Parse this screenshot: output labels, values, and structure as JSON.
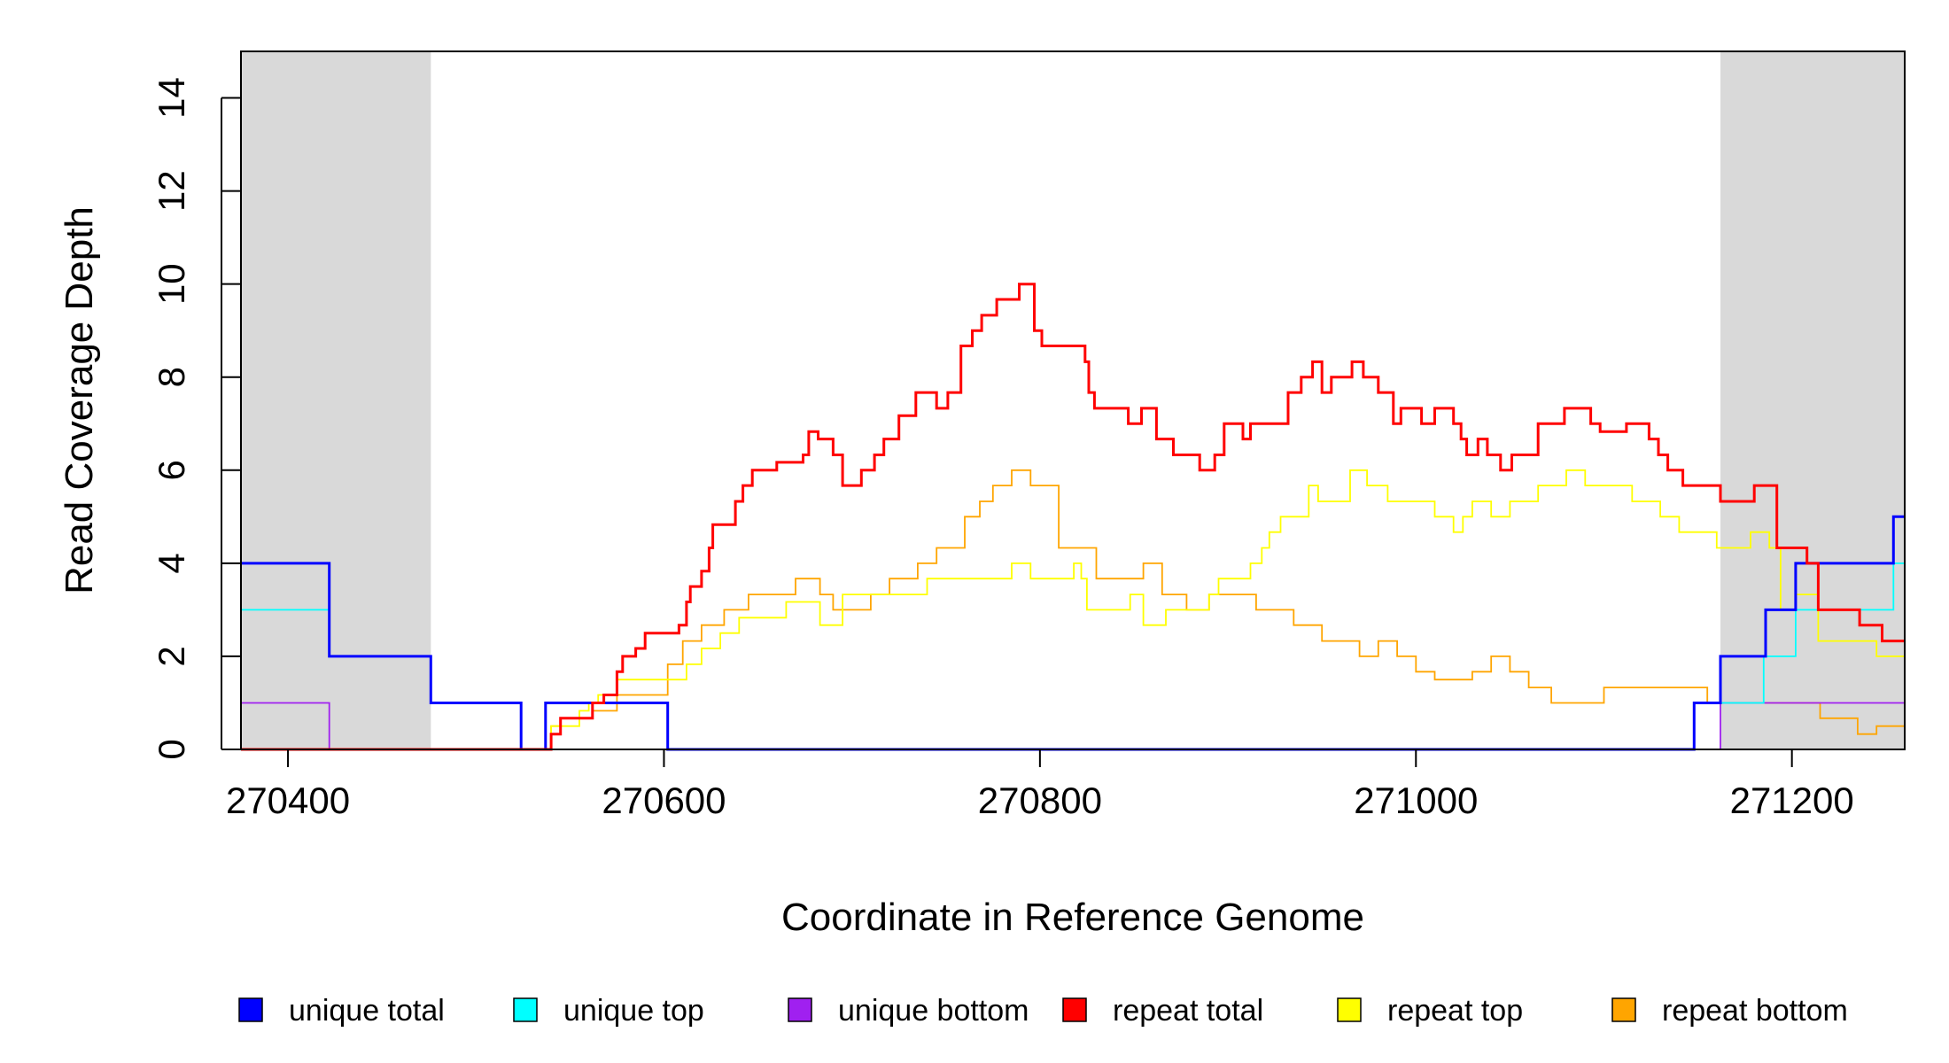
{
  "chart_data": {
    "type": "line",
    "xlabel": "Coordinate in Reference Genome",
    "ylabel": "Read Coverage Depth",
    "xlim": [
      270375,
      271260
    ],
    "ylim": [
      0,
      15
    ],
    "x_ticks": [
      270400,
      270600,
      270800,
      271000,
      271200
    ],
    "x_tick_labels": [
      "270400",
      "270600",
      "270800",
      "271000",
      "271200"
    ],
    "y_ticks": [
      0,
      2,
      4,
      6,
      8,
      10,
      12,
      14
    ],
    "y_tick_labels": [
      "0",
      "2",
      "4",
      "6",
      "8",
      "10",
      "12",
      "14"
    ],
    "shaded_regions": [
      {
        "from": 270375,
        "to": 270476,
        "color": "#d9d9d9"
      },
      {
        "from": 271162,
        "to": 271260,
        "color": "#d9d9d9"
      }
    ],
    "series": [
      {
        "name": "unique total",
        "color": "#0000ff",
        "step": [
          [
            270375,
            4
          ],
          [
            270422,
            2
          ],
          [
            270476,
            1
          ],
          [
            270524,
            0
          ],
          [
            270537,
            1
          ],
          [
            270602,
            0
          ],
          [
            271148,
            1
          ],
          [
            271162,
            2
          ],
          [
            271186,
            3
          ],
          [
            271202,
            4
          ],
          [
            271254,
            5
          ],
          [
            271260,
            5
          ]
        ]
      },
      {
        "name": "unique top",
        "color": "#00ffff",
        "step": [
          [
            270375,
            3
          ],
          [
            270422,
            2
          ],
          [
            270476,
            1
          ],
          [
            270524,
            0
          ],
          [
            270537,
            1
          ],
          [
            270602,
            0
          ],
          [
            271148,
            1
          ],
          [
            271185,
            2
          ],
          [
            271202,
            3
          ],
          [
            271254,
            4
          ],
          [
            271260,
            4
          ]
        ]
      },
      {
        "name": "unique bottom",
        "color": "#a020f0",
        "step": [
          [
            270375,
            1
          ],
          [
            270422,
            0
          ],
          [
            271162,
            1
          ],
          [
            271260,
            1
          ]
        ]
      },
      {
        "name": "repeat total",
        "color": "#ff0000",
        "step": [
          [
            270375,
            0
          ],
          [
            270537,
            0
          ],
          [
            270540,
            0.33
          ],
          [
            270545,
            0.67
          ],
          [
            270547,
            0.67
          ],
          [
            270562,
            1
          ],
          [
            270568,
            1.17
          ],
          [
            270575,
            1.67
          ],
          [
            270578,
            2
          ],
          [
            270585,
            2.17
          ],
          [
            270590,
            2.5
          ],
          [
            270608,
            2.67
          ],
          [
            270612,
            3.17
          ],
          [
            270614,
            3.5
          ],
          [
            270620,
            3.83
          ],
          [
            270624,
            4.33
          ],
          [
            270626,
            4.83
          ],
          [
            270638,
            5.33
          ],
          [
            270642,
            5.67
          ],
          [
            270647,
            6
          ],
          [
            270660,
            6.17
          ],
          [
            270674,
            6.33
          ],
          [
            270677,
            6.83
          ],
          [
            270682,
            6.67
          ],
          [
            270690,
            6.33
          ],
          [
            270695,
            5.67
          ],
          [
            270705,
            6
          ],
          [
            270712,
            6.33
          ],
          [
            270717,
            6.67
          ],
          [
            270725,
            7.17
          ],
          [
            270734,
            7.67
          ],
          [
            270745,
            7.33
          ],
          [
            270751,
            7.67
          ],
          [
            270758,
            8.67
          ],
          [
            270764,
            9
          ],
          [
            270769,
            9.33
          ],
          [
            270777,
            9.67
          ],
          [
            270789,
            10
          ],
          [
            270797,
            9
          ],
          [
            270801,
            8.67
          ],
          [
            270812,
            8.67
          ],
          [
            270820,
            8.67
          ],
          [
            270824,
            8.33
          ],
          [
            270826,
            7.67
          ],
          [
            270829,
            7.33
          ],
          [
            270847,
            7
          ],
          [
            270854,
            7.33
          ],
          [
            270862,
            6.67
          ],
          [
            270866,
            6.67
          ],
          [
            270871,
            6.33
          ],
          [
            270876,
            6.33
          ],
          [
            270880,
            6.33
          ],
          [
            270885,
            6
          ],
          [
            270893,
            6.33
          ],
          [
            270898,
            7
          ],
          [
            270908,
            6.67
          ],
          [
            270912,
            7
          ],
          [
            270922,
            7
          ],
          [
            270932,
            7.67
          ],
          [
            270939,
            8
          ],
          [
            270945,
            8.33
          ],
          [
            270950,
            7.67
          ],
          [
            270955,
            8
          ],
          [
            270962,
            8
          ],
          [
            270966,
            8.33
          ],
          [
            270972,
            8
          ],
          [
            270980,
            7.67
          ],
          [
            270988,
            7
          ],
          [
            270992,
            7.33
          ],
          [
            271003,
            7
          ],
          [
            271010,
            7.33
          ],
          [
            271012,
            7.33
          ],
          [
            271020,
            7
          ],
          [
            271024,
            6.67
          ],
          [
            271027,
            6.33
          ],
          [
            271033,
            6.67
          ],
          [
            271038,
            6.33
          ],
          [
            271045,
            6
          ],
          [
            271051,
            6.33
          ],
          [
            271052,
            6.33
          ],
          [
            271065,
            7
          ],
          [
            271079,
            7.33
          ],
          [
            271093,
            7
          ],
          [
            271098,
            6.83
          ],
          [
            271112,
            7
          ],
          [
            271124,
            6.67
          ],
          [
            271129,
            6.33
          ],
          [
            271134,
            6
          ],
          [
            271142,
            5.67
          ],
          [
            271152,
            5.67
          ],
          [
            271162,
            5.33
          ],
          [
            271180,
            5.67
          ],
          [
            271192,
            4.33
          ],
          [
            271202,
            4.33
          ],
          [
            271208,
            4
          ],
          [
            271214,
            3
          ],
          [
            271236,
            2.67
          ],
          [
            271248,
            2.33
          ],
          [
            271260,
            2.33
          ]
        ]
      },
      {
        "name": "repeat top",
        "color": "#ffff00",
        "step": [
          [
            270375,
            0
          ],
          [
            270537,
            0
          ],
          [
            270540,
            0.5
          ],
          [
            270555,
            0.83
          ],
          [
            270560,
            1
          ],
          [
            270565,
            1.17
          ],
          [
            270575,
            1.5
          ],
          [
            270600,
            1.5
          ],
          [
            270605,
            1.5
          ],
          [
            270612,
            1.83
          ],
          [
            270620,
            2.17
          ],
          [
            270630,
            2.5
          ],
          [
            270640,
            2.83
          ],
          [
            270665,
            3.17
          ],
          [
            270683,
            2.67
          ],
          [
            270690,
            2.67
          ],
          [
            270695,
            3.33
          ],
          [
            270720,
            3.33
          ],
          [
            270740,
            3.67
          ],
          [
            270760,
            3.67
          ],
          [
            270785,
            4
          ],
          [
            270795,
            3.67
          ],
          [
            270808,
            3.67
          ],
          [
            270818,
            4
          ],
          [
            270822,
            3.67
          ],
          [
            270825,
            3
          ],
          [
            270848,
            3.33
          ],
          [
            270855,
            2.67
          ],
          [
            270860,
            2.67
          ],
          [
            270867,
            3
          ],
          [
            270880,
            3
          ],
          [
            270890,
            3.33
          ],
          [
            270895,
            3.67
          ],
          [
            270905,
            3.67
          ],
          [
            270912,
            4
          ],
          [
            270918,
            4.33
          ],
          [
            270922,
            4.67
          ],
          [
            270928,
            5
          ],
          [
            270940,
            5
          ],
          [
            270943,
            5.67
          ],
          [
            270948,
            5.33
          ],
          [
            270965,
            6
          ],
          [
            270974,
            5.67
          ],
          [
            270985,
            5.33
          ],
          [
            271000,
            5.33
          ],
          [
            271010,
            5
          ],
          [
            271020,
            4.67
          ],
          [
            271025,
            5
          ],
          [
            271030,
            5.33
          ],
          [
            271040,
            5
          ],
          [
            271050,
            5.33
          ],
          [
            271065,
            5.67
          ],
          [
            271080,
            6
          ],
          [
            271090,
            5.67
          ],
          [
            271115,
            5.33
          ],
          [
            271130,
            5
          ],
          [
            271140,
            4.67
          ],
          [
            271150,
            4.67
          ],
          [
            271160,
            4.33
          ],
          [
            271178,
            4.67
          ],
          [
            271188,
            4.33
          ],
          [
            271194,
            3
          ],
          [
            271202,
            3.33
          ],
          [
            271214,
            2.33
          ],
          [
            271245,
            2
          ],
          [
            271260,
            2
          ]
        ]
      },
      {
        "name": "repeat bottom",
        "color": "#ffa500",
        "step": [
          [
            270375,
            0
          ],
          [
            270537,
            0
          ],
          [
            270540,
            0.5
          ],
          [
            270545,
            0.67
          ],
          [
            270562,
            0.83
          ],
          [
            270575,
            1.17
          ],
          [
            270590,
            1.17
          ],
          [
            270602,
            1.83
          ],
          [
            270610,
            2.33
          ],
          [
            270620,
            2.67
          ],
          [
            270632,
            3
          ],
          [
            270645,
            3.33
          ],
          [
            270670,
            3.67
          ],
          [
            270683,
            3.33
          ],
          [
            270690,
            3
          ],
          [
            270710,
            3.33
          ],
          [
            270720,
            3.67
          ],
          [
            270735,
            4
          ],
          [
            270745,
            4.33
          ],
          [
            270760,
            5
          ],
          [
            270768,
            5.33
          ],
          [
            270775,
            5.67
          ],
          [
            270785,
            6
          ],
          [
            270795,
            5.67
          ],
          [
            270810,
            4.33
          ],
          [
            270830,
            3.67
          ],
          [
            270855,
            4
          ],
          [
            270865,
            3.33
          ],
          [
            270878,
            3
          ],
          [
            270890,
            3.33
          ],
          [
            270915,
            3
          ],
          [
            270935,
            2.67
          ],
          [
            270950,
            2.33
          ],
          [
            270962,
            2.33
          ],
          [
            270970,
            2
          ],
          [
            270980,
            2.33
          ],
          [
            270990,
            2
          ],
          [
            271000,
            1.67
          ],
          [
            271010,
            1.5
          ],
          [
            271030,
            1.67
          ],
          [
            271040,
            2
          ],
          [
            271050,
            1.67
          ],
          [
            271060,
            1.33
          ],
          [
            271072,
            1
          ],
          [
            271100,
            1.33
          ],
          [
            271125,
            1.33
          ],
          [
            271148,
            1.33
          ],
          [
            271155,
            1
          ],
          [
            271170,
            1
          ],
          [
            271215,
            0.67
          ],
          [
            271235,
            0.33
          ],
          [
            271245,
            0.5
          ],
          [
            271260,
            0.5
          ]
        ]
      }
    ],
    "legend": {
      "placement": "bottom",
      "entries": [
        {
          "label": "unique total",
          "color": "#0000ff"
        },
        {
          "label": "unique top",
          "color": "#00ffff"
        },
        {
          "label": "unique bottom",
          "color": "#a020f0"
        },
        {
          "label": "repeat total",
          "color": "#ff0000"
        },
        {
          "label": "repeat top",
          "color": "#ffff00"
        },
        {
          "label": "repeat bottom",
          "color": "#ffa500"
        }
      ]
    },
    "grid": false
  }
}
